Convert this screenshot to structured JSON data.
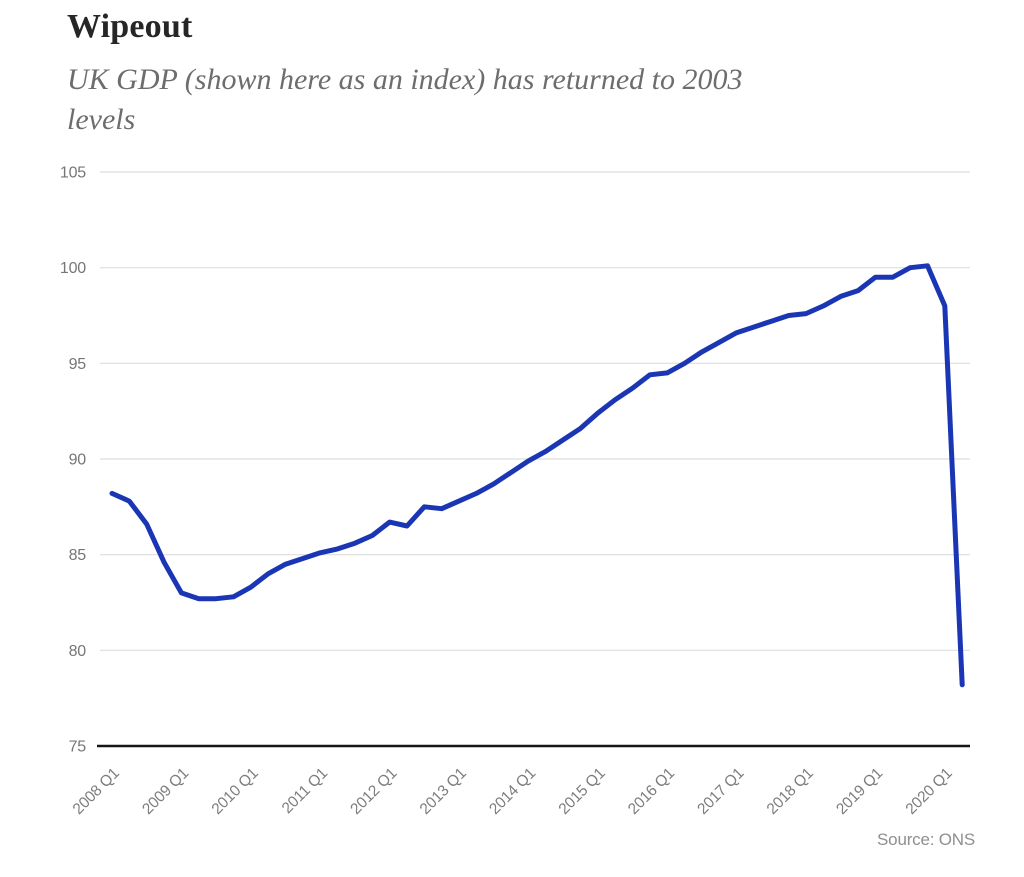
{
  "header": {
    "title": "Wipeout",
    "subtitle_line1": "UK GDP (shown here as an index) has returned to 2003",
    "subtitle_line2": "levels"
  },
  "footer": {
    "source": "Source: ONS"
  },
  "chart_data": {
    "type": "line",
    "title": "Wipeout",
    "subtitle": "UK GDP (shown here as an index) has returned to 2003 levels",
    "series_name": "UK GDP index",
    "categories": [
      "2008 Q1",
      "2008 Q2",
      "2008 Q3",
      "2008 Q4",
      "2009 Q1",
      "2009 Q2",
      "2009 Q3",
      "2009 Q4",
      "2010 Q1",
      "2010 Q2",
      "2010 Q3",
      "2010 Q4",
      "2011 Q1",
      "2011 Q2",
      "2011 Q3",
      "2011 Q4",
      "2012 Q1",
      "2012 Q2",
      "2012 Q3",
      "2012 Q4",
      "2013 Q1",
      "2013 Q2",
      "2013 Q3",
      "2013 Q4",
      "2014 Q1",
      "2014 Q2",
      "2014 Q3",
      "2014 Q4",
      "2015 Q1",
      "2015 Q2",
      "2015 Q3",
      "2015 Q4",
      "2016 Q1",
      "2016 Q2",
      "2016 Q3",
      "2016 Q4",
      "2017 Q1",
      "2017 Q2",
      "2017 Q3",
      "2017 Q4",
      "2018 Q1",
      "2018 Q2",
      "2018 Q3",
      "2018 Q4",
      "2019 Q1",
      "2019 Q2",
      "2019 Q3",
      "2019 Q4",
      "2020 Q1",
      "2020 Q2"
    ],
    "values": [
      88.2,
      87.8,
      86.6,
      84.6,
      83.0,
      82.7,
      82.7,
      82.8,
      83.3,
      84.0,
      84.5,
      84.8,
      85.1,
      85.3,
      85.6,
      86.0,
      86.7,
      86.5,
      87.5,
      87.4,
      87.8,
      88.2,
      88.7,
      89.3,
      89.9,
      90.4,
      91.0,
      91.6,
      92.4,
      93.1,
      93.7,
      94.4,
      94.5,
      95.0,
      95.6,
      96.1,
      96.6,
      96.9,
      97.2,
      97.5,
      97.6,
      98.0,
      98.5,
      98.8,
      99.5,
      99.5,
      100.0,
      100.1,
      98.0,
      78.2
    ],
    "ylim": [
      75,
      105
    ],
    "y_ticks": [
      75,
      80,
      85,
      90,
      95,
      100,
      105
    ],
    "x_tick_labels": [
      "2008 Q1",
      "2009 Q1",
      "2010 Q1",
      "2011 Q1",
      "2012 Q1",
      "2013 Q1",
      "2014 Q1",
      "2015 Q1",
      "2016 Q1",
      "2017 Q1",
      "2018 Q1",
      "2019 Q1",
      "2020 Q1"
    ],
    "x_tick_every_n_points": 4,
    "grid": "horizontal",
    "legend": "none",
    "source": "Source: ONS",
    "colors": {
      "line": "#1b36b4",
      "gridline": "#dedede",
      "axis_line": "#161616",
      "tick_label": "#767676",
      "title": "#262626",
      "subtitle": "#6d6d6d",
      "source": "#8f8f8f",
      "background": "#ffffff"
    }
  }
}
